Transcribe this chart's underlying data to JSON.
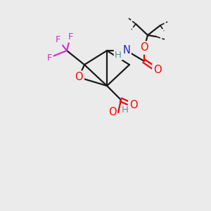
{
  "background_color": "#ebebeb",
  "figsize": [
    3.0,
    3.0
  ],
  "dpi": 100,
  "colors": {
    "C": "#1a1a1a",
    "O": "#ff0000",
    "N": "#2020cc",
    "F": "#cc33cc",
    "H": "#4a9898",
    "bond": "#1a1a1a"
  },
  "bond_width": 1.6,
  "font_size_atom": 10.5
}
